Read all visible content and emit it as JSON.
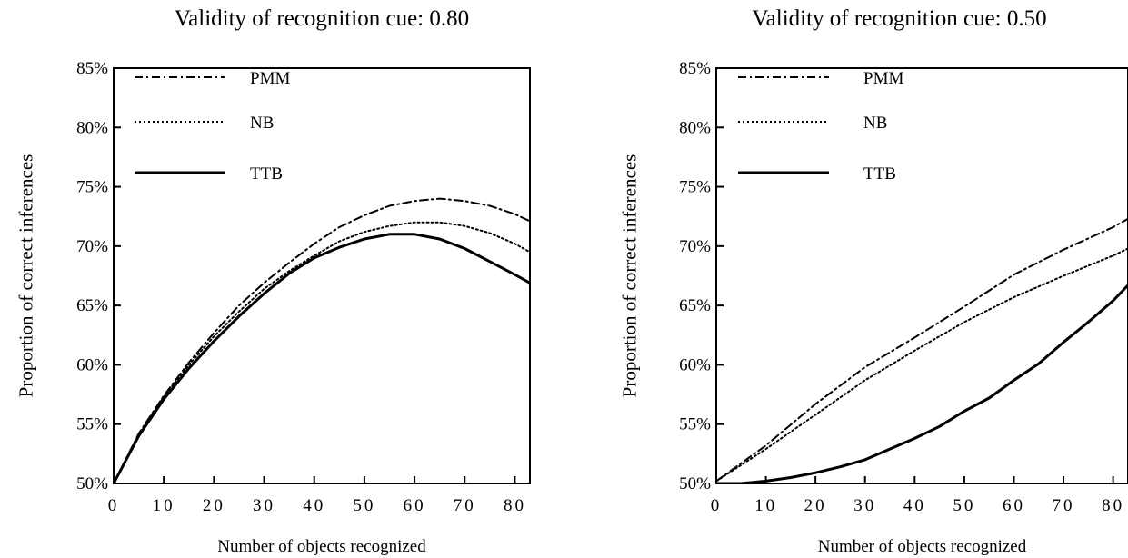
{
  "chart_data": [
    {
      "type": "line",
      "title": "Validity of recognition cue: 0.80",
      "xlabel": "Number of objects recognized",
      "ylabel": "Proportion of correct inferences",
      "xlim": [
        0,
        83
      ],
      "ylim": [
        0.5,
        0.85
      ],
      "xticks": [
        "0",
        "10",
        "20",
        "30",
        "40",
        "50",
        "60",
        "70",
        "80"
      ],
      "yticks": [
        "50%",
        "55%",
        "60%",
        "65%",
        "70%",
        "75%",
        "80%",
        "85%"
      ],
      "legend_position": "top-left",
      "series": [
        {
          "name": "PMM",
          "style": "dashdot",
          "x": [
            0,
            5,
            10,
            15,
            20,
            25,
            30,
            35,
            40,
            45,
            50,
            55,
            60,
            65,
            70,
            75,
            80,
            83
          ],
          "y": [
            0.5,
            0.542,
            0.574,
            0.602,
            0.627,
            0.65,
            0.669,
            0.686,
            0.702,
            0.716,
            0.726,
            0.734,
            0.738,
            0.74,
            0.738,
            0.734,
            0.727,
            0.721
          ]
        },
        {
          "name": "NB",
          "style": "dotted",
          "x": [
            0,
            5,
            10,
            15,
            20,
            25,
            30,
            35,
            40,
            45,
            50,
            55,
            60,
            65,
            70,
            75,
            80,
            83
          ],
          "y": [
            0.5,
            0.541,
            0.573,
            0.6,
            0.624,
            0.645,
            0.664,
            0.679,
            0.692,
            0.704,
            0.712,
            0.717,
            0.72,
            0.72,
            0.717,
            0.711,
            0.702,
            0.695
          ]
        },
        {
          "name": "TTB",
          "style": "solid",
          "x": [
            0,
            5,
            10,
            15,
            20,
            25,
            30,
            35,
            40,
            45,
            50,
            55,
            60,
            65,
            70,
            75,
            80,
            83
          ],
          "y": [
            0.5,
            0.54,
            0.571,
            0.597,
            0.62,
            0.641,
            0.66,
            0.677,
            0.69,
            0.699,
            0.706,
            0.71,
            0.71,
            0.706,
            0.698,
            0.687,
            0.676,
            0.669
          ]
        }
      ]
    },
    {
      "type": "line",
      "title": "Validity of recognition cue: 0.50",
      "xlabel": "Number of objects recognized",
      "ylabel": "Proportion of correct inferences",
      "xlim": [
        0,
        83
      ],
      "ylim": [
        0.5,
        0.85
      ],
      "xticks": [
        "0",
        "10",
        "20",
        "30",
        "40",
        "50",
        "60",
        "70",
        "80"
      ],
      "yticks": [
        "50%",
        "55%",
        "60%",
        "65%",
        "70%",
        "75%",
        "80%",
        "85%"
      ],
      "legend_position": "top-left",
      "series": [
        {
          "name": "PMM",
          "style": "dashdot",
          "x": [
            0,
            10,
            20,
            30,
            40,
            50,
            60,
            70,
            80,
            83
          ],
          "y": [
            0.502,
            0.532,
            0.567,
            0.598,
            0.623,
            0.649,
            0.676,
            0.697,
            0.716,
            0.723
          ]
        },
        {
          "name": "NB",
          "style": "dotted",
          "x": [
            0,
            10,
            20,
            30,
            40,
            50,
            60,
            70,
            80,
            83
          ],
          "y": [
            0.502,
            0.529,
            0.558,
            0.587,
            0.612,
            0.636,
            0.657,
            0.675,
            0.692,
            0.698
          ]
        },
        {
          "name": "TTB",
          "style": "solid",
          "x": [
            0,
            5,
            10,
            15,
            20,
            25,
            30,
            35,
            40,
            45,
            50,
            55,
            60,
            65,
            70,
            75,
            80,
            83
          ],
          "y": [
            0.5,
            0.5,
            0.502,
            0.505,
            0.509,
            0.514,
            0.52,
            0.529,
            0.538,
            0.548,
            0.561,
            0.572,
            0.587,
            0.601,
            0.619,
            0.636,
            0.654,
            0.667
          ]
        }
      ]
    }
  ]
}
